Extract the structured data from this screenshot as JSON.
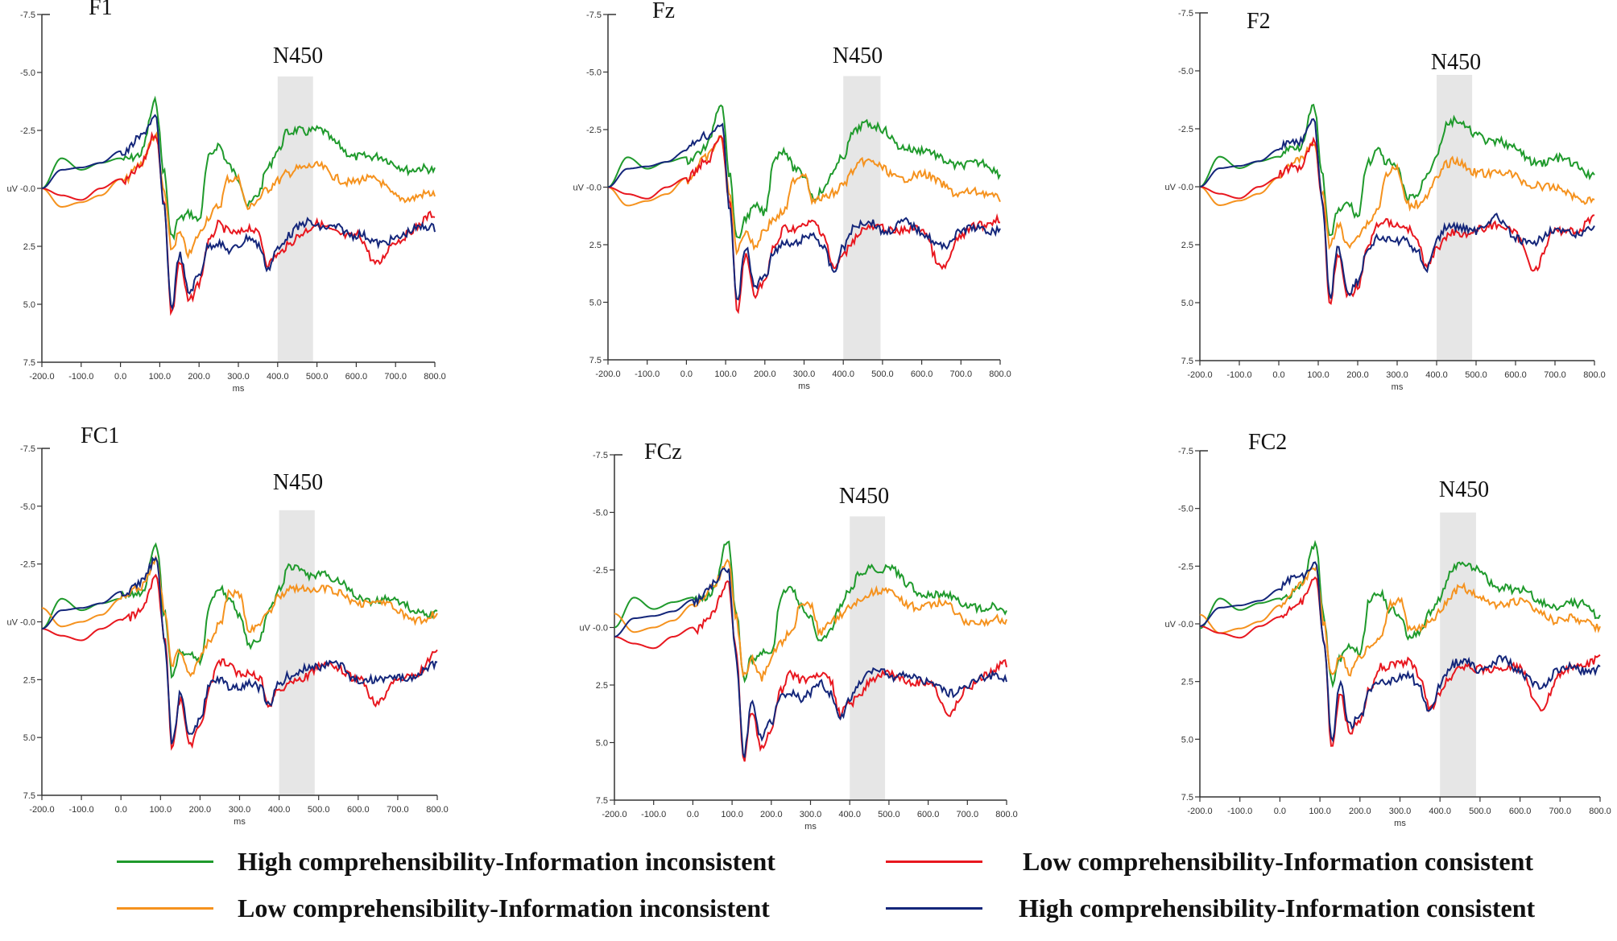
{
  "chart_data": [
    {
      "type": "line",
      "title": "F1",
      "annotation": "N450",
      "xlabel": "ms",
      "ylabel": "uV",
      "xlim": [
        -200,
        800
      ],
      "ylim": [
        -7.5,
        7.5
      ],
      "y_inverted": true,
      "shaded_window": [
        400,
        490
      ]
    },
    {
      "type": "line",
      "title": "Fz",
      "annotation": "N450",
      "xlabel": "ms",
      "ylabel": "uV",
      "xlim": [
        -200,
        800
      ],
      "ylim": [
        -7.5,
        7.5
      ],
      "y_inverted": true,
      "shaded_window": [
        400,
        495
      ]
    },
    {
      "type": "line",
      "title": "F2",
      "annotation": "N450",
      "xlabel": "ms",
      "ylabel": "uV",
      "xlim": [
        -200,
        800
      ],
      "ylim": [
        -7.5,
        7.5
      ],
      "y_inverted": true,
      "shaded_window": [
        400,
        490
      ]
    },
    {
      "type": "line",
      "title": "FC1",
      "annotation": "N450",
      "xlabel": "ms",
      "ylabel": "uV",
      "xlim": [
        -200,
        800
      ],
      "ylim": [
        -7.5,
        7.5
      ],
      "y_inverted": true,
      "shaded_window": [
        400,
        490
      ]
    },
    {
      "type": "line",
      "title": "FCz",
      "annotation": "N450",
      "xlabel": "ms",
      "ylabel": "uV",
      "xlim": [
        -200,
        800
      ],
      "ylim": [
        -7.5,
        7.5
      ],
      "y_inverted": true,
      "shaded_window": [
        400,
        490
      ]
    },
    {
      "type": "line",
      "title": "FC2",
      "annotation": "N450",
      "xlabel": "ms",
      "ylabel": "uV",
      "xlim": [
        -200,
        800
      ],
      "ylim": [
        -7.5,
        7.5
      ],
      "y_inverted": true,
      "shaded_window": [
        400,
        490
      ]
    }
  ],
  "x_ticks": [
    "-200.0",
    "-100.0",
    "0.0",
    "100.0",
    "200.0",
    "300.0",
    "400.0",
    "500.0",
    "600.0",
    "700.0",
    "800.0"
  ],
  "y_ticks": [
    "-7.5",
    "-5.0",
    "-2.5",
    "uV -0.0",
    "2.5",
    "5.0",
    "7.5"
  ],
  "series_times": [
    -200,
    -150,
    -100,
    -50,
    0,
    50,
    90,
    110,
    130,
    150,
    175,
    200,
    225,
    250,
    275,
    300,
    325,
    350,
    375,
    400,
    425,
    450,
    475,
    500,
    550,
    600,
    650,
    700,
    750,
    800
  ],
  "series": [
    {
      "name": "High comprehensibility-Information inconsistent",
      "color": "#1f9a2c",
      "values": [
        0,
        -1.3,
        -0.8,
        -1.1,
        -1.3,
        -1.6,
        -3.6,
        -0.6,
        2.2,
        1.2,
        0.9,
        1.3,
        -1.2,
        -1.7,
        -1.0,
        -0.6,
        0.6,
        0.3,
        -0.7,
        -1.5,
        -2.5,
        -2.7,
        -2.5,
        -2.4,
        -1.9,
        -1.5,
        -1.2,
        -1.1,
        -0.9,
        -0.6
      ]
    },
    {
      "name": "Low comprehensibility-Information inconsistent",
      "color": "#f5921e",
      "values": [
        0,
        0.8,
        0.6,
        0.3,
        -0.4,
        -1.1,
        -2.1,
        0.2,
        2.6,
        1.8,
        2.7,
        2.0,
        1.4,
        0.9,
        -0.5,
        -0.6,
        0.8,
        0.6,
        0.2,
        -0.3,
        -0.8,
        -1.0,
        -0.9,
        -0.8,
        -0.5,
        -0.4,
        -0.2,
        0.2,
        0.4,
        0.4
      ]
    },
    {
      "name": "Low comprehensibility-Information consistent",
      "color": "#e8171f",
      "values": [
        0,
        0.3,
        0.5,
        0.0,
        -0.4,
        -0.9,
        -2.2,
        0.5,
        5.3,
        3.0,
        4.8,
        4.2,
        2.5,
        1.6,
        1.7,
        1.8,
        1.7,
        2.1,
        3.4,
        2.8,
        2.3,
        2.0,
        1.9,
        1.7,
        1.8,
        2.0,
        3.4,
        2.1,
        1.8,
        1.2
      ]
    },
    {
      "name": "High comprehensibility-Information consistent",
      "color": "#14267a",
      "values": [
        0,
        -0.8,
        -0.9,
        -1.1,
        -1.6,
        -2.1,
        -2.9,
        0.7,
        5.0,
        2.7,
        4.5,
        3.9,
        2.6,
        2.3,
        2.5,
        2.4,
        2.2,
        2.6,
        3.5,
        2.5,
        1.9,
        1.7,
        1.6,
        1.8,
        1.5,
        2.1,
        2.4,
        2.0,
        1.9,
        1.7
      ]
    }
  ],
  "legend": {
    "items": [
      {
        "label": "High comprehensibility-Information inconsistent",
        "color": "#1f9a2c"
      },
      {
        "label": "Low comprehensibility-Information consistent",
        "color": "#e8171f"
      },
      {
        "label": "Low comprehensibility-Information inconsistent",
        "color": "#f5921e"
      },
      {
        "label": "High comprehensibility-Information consistent",
        "color": "#14267a"
      }
    ]
  }
}
